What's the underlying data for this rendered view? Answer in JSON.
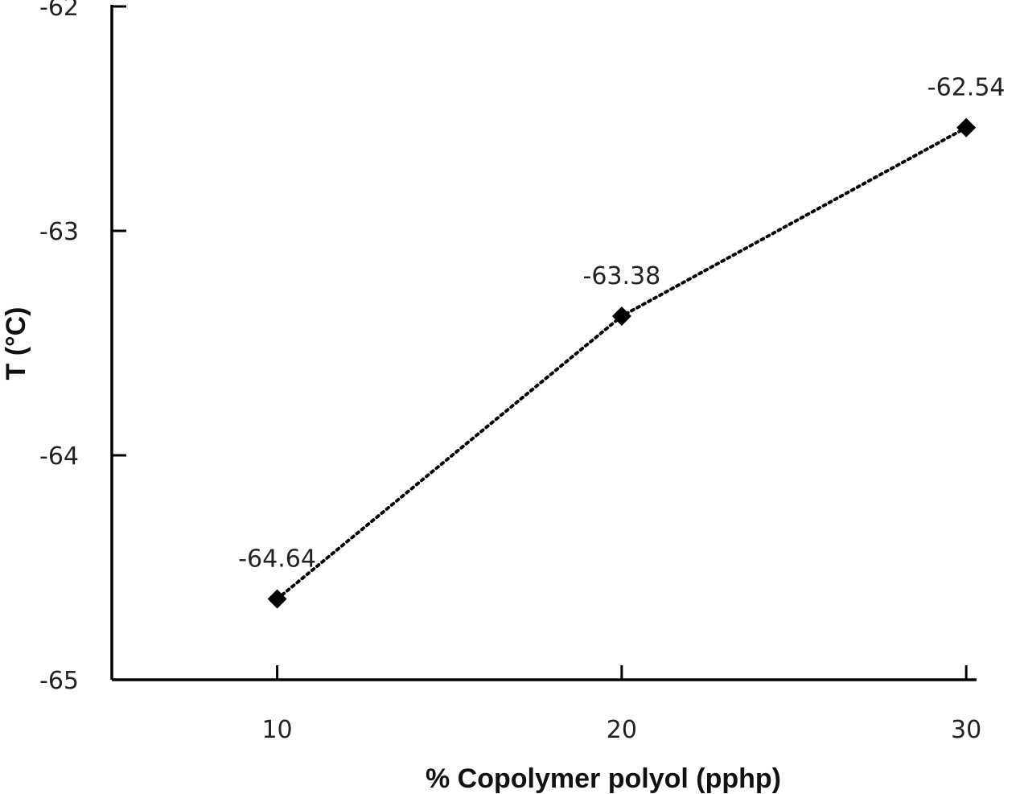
{
  "chart_data": {
    "type": "line",
    "title": "",
    "xlabel": "% Copolymer polyol (pphp)",
    "ylabel": "T (°C)",
    "x": [
      10,
      20,
      30
    ],
    "series": [
      {
        "values": [
          -64.64,
          -63.38,
          -62.54
        ],
        "data_labels": [
          "-64.64",
          "-63.38",
          "-62.54"
        ],
        "marker": "diamond",
        "line_style": "dotted",
        "color": "#000000"
      }
    ],
    "xticks": [
      10,
      20,
      30
    ],
    "xtick_labels": [
      "10",
      "20",
      "30"
    ],
    "yticks": [
      -65,
      -64,
      -63,
      -62
    ],
    "ytick_labels": [
      "-65",
      "-64",
      "-63",
      "-62"
    ],
    "xlim": [
      5.2,
      30.3
    ],
    "ylim": [
      -65,
      -62
    ],
    "grid": false,
    "legend": "none"
  }
}
